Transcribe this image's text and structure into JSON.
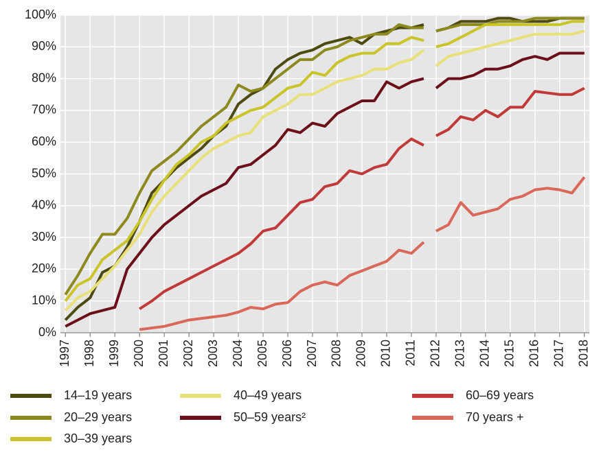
{
  "chart_data": {
    "type": "line",
    "x": [
      1997,
      1997.5,
      1998,
      1998.5,
      1999,
      1999.5,
      2000,
      2000.5,
      2001,
      2001.5,
      2002,
      2002.5,
      2003,
      2003.5,
      2004,
      2004.5,
      2005,
      2005.5,
      2006,
      2006.5,
      2007,
      2007.5,
      2008,
      2008.5,
      2009,
      2009.5,
      2010,
      2010.5,
      2011,
      2011.5,
      2011.75,
      2012,
      2012.5,
      2013,
      2013.5,
      2014,
      2014.5,
      2015,
      2015.5,
      2016,
      2016.5,
      2017,
      2017.5,
      2018
    ],
    "series": [
      {
        "name": "14–19 years",
        "color": "#4d4a12",
        "values": [
          4,
          8,
          11,
          19,
          21,
          27,
          35,
          44,
          48,
          52,
          55,
          58,
          62,
          65,
          72,
          75,
          77,
          83,
          86,
          88,
          89,
          91,
          92,
          93,
          91,
          94,
          95,
          96,
          96,
          97,
          null,
          95,
          96,
          98,
          98,
          98,
          99,
          99,
          98,
          98,
          98,
          99,
          99,
          99
        ]
      },
      {
        "name": "20–29 years",
        "color": "#8c8a1e",
        "values": [
          12,
          18,
          25,
          31,
          31,
          36,
          44,
          51,
          54,
          57,
          61,
          65,
          68,
          71,
          78,
          76,
          77,
          80,
          83,
          86,
          86,
          89,
          90,
          92,
          93,
          94,
          94,
          97,
          96,
          96,
          null,
          95,
          96,
          97,
          97,
          97,
          98,
          98,
          98,
          99,
          99,
          99,
          99,
          99
        ]
      },
      {
        "name": "30–39 years",
        "color": "#c8c42a",
        "values": [
          10,
          15,
          17,
          23,
          26,
          29,
          35,
          42,
          48,
          53,
          56,
          60,
          62,
          66,
          68,
          70,
          71,
          74,
          77,
          78,
          82,
          81,
          85,
          87,
          88,
          88,
          91,
          91,
          93,
          92,
          null,
          90,
          91,
          93,
          95,
          97,
          97,
          97,
          97,
          97,
          97,
          97,
          98,
          98
        ]
      },
      {
        "name": "40–49 years",
        "color": "#e8e07a",
        "values": [
          7,
          11,
          13,
          17,
          21,
          26,
          31,
          38,
          43,
          47,
          51,
          55,
          58,
          60,
          62,
          63,
          68,
          70,
          72,
          75,
          75,
          77,
          79,
          80,
          81,
          83,
          83,
          85,
          86,
          89,
          null,
          84,
          87,
          88,
          89,
          90,
          91,
          92,
          93,
          94,
          94,
          94,
          94,
          95
        ]
      },
      {
        "name": "50–59 years²",
        "color": "#6b0f1a",
        "values": [
          2,
          4,
          6,
          7,
          8,
          20,
          25,
          30,
          34,
          37,
          40,
          43,
          45,
          47,
          52,
          53,
          56,
          59,
          64,
          63,
          66,
          65,
          69,
          71,
          73,
          73,
          79,
          77,
          79,
          80,
          null,
          77,
          80,
          80,
          81,
          83,
          83,
          84,
          86,
          87,
          86,
          88,
          88,
          88
        ]
      },
      {
        "name": "60–69 years",
        "color": "#c03a3a",
        "values": [
          null,
          null,
          null,
          null,
          null,
          null,
          7.5,
          10,
          13,
          15,
          17,
          19,
          21,
          23,
          25,
          28,
          32,
          33,
          37,
          41,
          42,
          46,
          47,
          51,
          50,
          52,
          53,
          58,
          61,
          59,
          null,
          62,
          64,
          68,
          67,
          70,
          68,
          71,
          71,
          76,
          75.5,
          75,
          75,
          77
        ]
      },
      {
        "name": "70 years +",
        "color": "#d9685a",
        "values": [
          null,
          null,
          null,
          null,
          null,
          null,
          1,
          1.5,
          2,
          3,
          4,
          4.5,
          5,
          5.5,
          6.5,
          8,
          7.5,
          9,
          9.5,
          13,
          15,
          16,
          15,
          18,
          19.5,
          21,
          22.5,
          26,
          25,
          28.5,
          null,
          32,
          34,
          41,
          37,
          38,
          39,
          42,
          43,
          45,
          45.5,
          45,
          44,
          49
        ]
      }
    ],
    "xlim": [
      1996.8,
      2018.2
    ],
    "xticks": [
      1997,
      1998,
      1999,
      2000,
      2001,
      2002,
      2003,
      2004,
      2005,
      2006,
      2007,
      2008,
      2009,
      2010,
      2011,
      2012,
      2013,
      2014,
      2015,
      2016,
      2017,
      2018
    ],
    "ylim": [
      0,
      100
    ],
    "yticks": [
      {
        "value": 0,
        "label": "0%"
      },
      {
        "value": 10,
        "label": "10%"
      },
      {
        "value": 20,
        "label": "20%"
      },
      {
        "value": 30,
        "label": "30%"
      },
      {
        "value": 40,
        "label": "40%"
      },
      {
        "value": 50,
        "label": "50%"
      },
      {
        "value": 60,
        "label": "60%"
      },
      {
        "value": 70,
        "label": "70%"
      },
      {
        "value": 80,
        "label": "80%"
      },
      {
        "value": 90,
        "label": "90%"
      },
      {
        "value": 100,
        "label": "100%"
      }
    ],
    "grid": true
  }
}
